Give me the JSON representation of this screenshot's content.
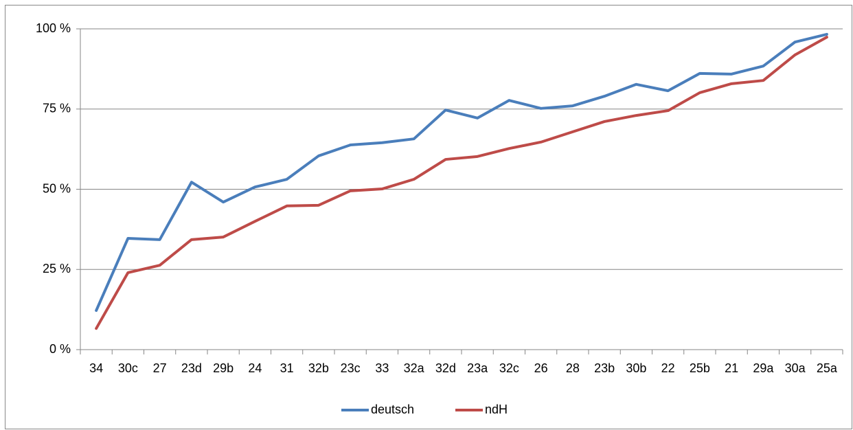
{
  "chart_data": {
    "type": "line",
    "categories": [
      "34",
      "30c",
      "27",
      "23d",
      "29b",
      "24",
      "31",
      "32b",
      "23c",
      "33",
      "32a",
      "32d",
      "23a",
      "32c",
      "26",
      "28",
      "23b",
      "30b",
      "22",
      "25b",
      "21",
      "29a",
      "30a",
      "25a"
    ],
    "series": [
      {
        "name": "deutsch",
        "color": "#4a7ebb",
        "values": [
          12.2,
          34.7,
          34.3,
          52.2,
          46.0,
          50.7,
          53.1,
          60.4,
          63.8,
          64.5,
          65.7,
          74.7,
          72.2,
          77.7,
          75.2,
          76.0,
          79.0,
          82.7,
          80.7,
          86.1,
          85.9,
          88.4,
          95.9,
          98.3
        ]
      },
      {
        "name": "ndH",
        "color": "#be4b48",
        "values": [
          6.6,
          24.0,
          26.3,
          34.3,
          35.1,
          40.0,
          44.8,
          45.0,
          49.5,
          50.1,
          53.1,
          59.3,
          60.2,
          62.7,
          64.7,
          67.9,
          71.1,
          73.0,
          74.5,
          80.1,
          82.9,
          83.9,
          91.9,
          97.4
        ]
      }
    ],
    "ylim": [
      0,
      100
    ],
    "yticks": [
      {
        "value": 0,
        "label": "0 %"
      },
      {
        "value": 25,
        "label": "25 %"
      },
      {
        "value": 50,
        "label": "50 %"
      },
      {
        "value": 75,
        "label": "75 %"
      },
      {
        "value": 100,
        "label": "100 %"
      }
    ],
    "grid": true,
    "legend": "bottom"
  }
}
